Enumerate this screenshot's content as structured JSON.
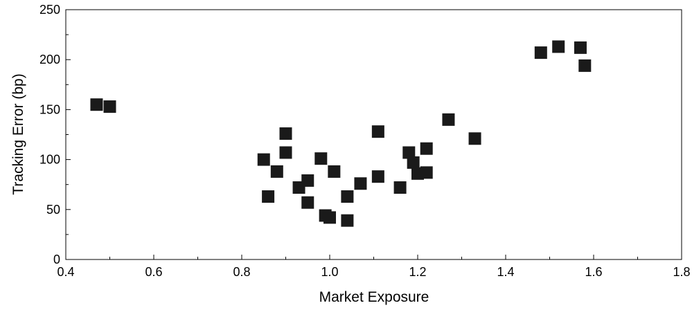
{
  "chart_data": {
    "type": "scatter",
    "xlabel": "Market Exposure",
    "ylabel": "Tracking Error (bp)",
    "xlim": [
      0.4,
      1.8
    ],
    "ylim": [
      0,
      250
    ],
    "x_ticks": [
      "0.4",
      "0.6",
      "0.8",
      "1.0",
      "1.2",
      "1.4",
      "1.6",
      "1.8"
    ],
    "y_ticks": [
      "0",
      "50",
      "100",
      "150",
      "200",
      "250"
    ],
    "grid": false,
    "legend": "none",
    "marker": "square",
    "marker_color": "#1a1a1a",
    "points": [
      {
        "x": 0.47,
        "y": 155
      },
      {
        "x": 0.5,
        "y": 153
      },
      {
        "x": 0.85,
        "y": 100
      },
      {
        "x": 0.86,
        "y": 63
      },
      {
        "x": 0.88,
        "y": 88
      },
      {
        "x": 0.9,
        "y": 126
      },
      {
        "x": 0.9,
        "y": 107
      },
      {
        "x": 0.93,
        "y": 72
      },
      {
        "x": 0.95,
        "y": 79
      },
      {
        "x": 0.95,
        "y": 57
      },
      {
        "x": 0.98,
        "y": 101
      },
      {
        "x": 0.99,
        "y": 44
      },
      {
        "x": 1.0,
        "y": 42
      },
      {
        "x": 1.01,
        "y": 88
      },
      {
        "x": 1.04,
        "y": 63
      },
      {
        "x": 1.04,
        "y": 39
      },
      {
        "x": 1.07,
        "y": 76
      },
      {
        "x": 1.11,
        "y": 128
      },
      {
        "x": 1.11,
        "y": 83
      },
      {
        "x": 1.16,
        "y": 72
      },
      {
        "x": 1.18,
        "y": 107
      },
      {
        "x": 1.19,
        "y": 97
      },
      {
        "x": 1.2,
        "y": 86
      },
      {
        "x": 1.22,
        "y": 111
      },
      {
        "x": 1.22,
        "y": 87
      },
      {
        "x": 1.27,
        "y": 140
      },
      {
        "x": 1.33,
        "y": 121
      },
      {
        "x": 1.48,
        "y": 207
      },
      {
        "x": 1.52,
        "y": 213
      },
      {
        "x": 1.57,
        "y": 212
      },
      {
        "x": 1.58,
        "y": 194
      }
    ]
  }
}
